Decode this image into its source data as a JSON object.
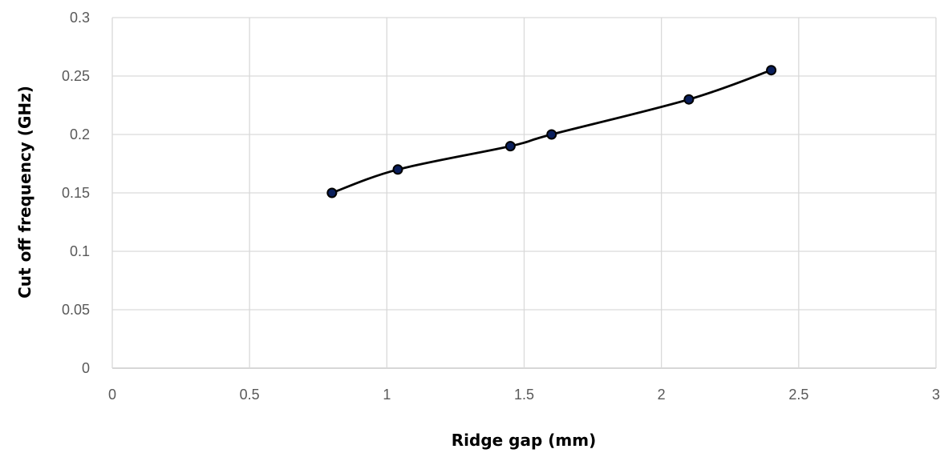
{
  "chart_data": {
    "type": "line",
    "title": "",
    "xlabel": "Ridge gap (mm)",
    "ylabel": "Cut off frequency (GHz)",
    "xlim": [
      0,
      3
    ],
    "ylim": [
      0,
      0.3
    ],
    "x_ticks": [
      "0",
      "0.5",
      "1",
      "1.5",
      "2",
      "2.5",
      "3"
    ],
    "y_ticks": [
      "0",
      "0.05",
      "0.1",
      "0.15",
      "0.2",
      "0.25",
      "0.3"
    ],
    "grid": true,
    "legend": "none",
    "series": [
      {
        "x": [
          0.8,
          1.04,
          1.45,
          1.6,
          2.1,
          2.4
        ],
        "y": [
          0.15,
          0.17,
          0.19,
          0.2,
          0.23,
          0.255
        ]
      }
    ],
    "colors": {
      "line": "#000000",
      "marker_fill": "#0a1f5c",
      "grid": "#d9d9d9",
      "axis": "#bfbfbf",
      "tick_text": "#595959"
    }
  }
}
